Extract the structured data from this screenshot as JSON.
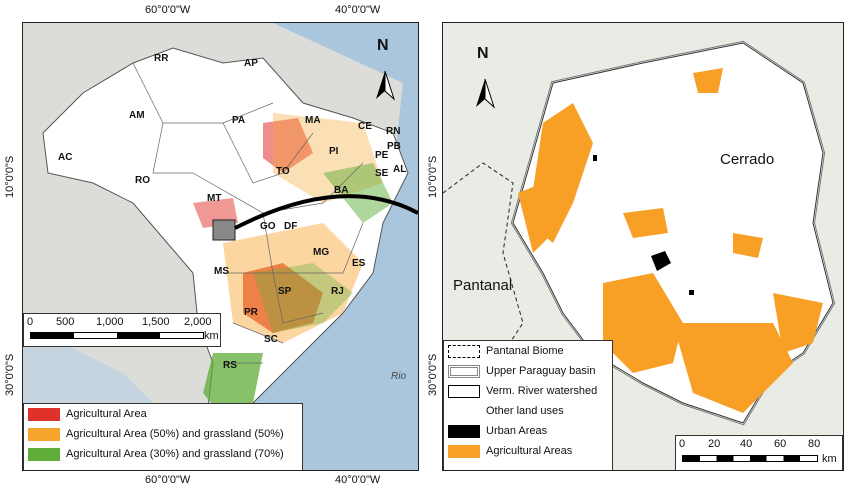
{
  "coords": {
    "top_left": "60°0'0\"W",
    "top_right": "40°0'0\"W",
    "bottom_left": "60°0'0\"W",
    "bottom_right": "40°0'0\"W",
    "left_upper": "10°0'0\"S",
    "left_lower": "30°0'0\"S",
    "right_upper": "10°0'0\"S",
    "right_lower": "30°0'0\"S"
  },
  "left_map": {
    "north": "N",
    "states": [
      "RR",
      "AP",
      "AM",
      "PA",
      "MA",
      "CE",
      "RN",
      "PB",
      "PE",
      "AL",
      "SE",
      "PI",
      "AC",
      "RO",
      "TO",
      "MT",
      "BA",
      "GO",
      "DF",
      "MG",
      "ES",
      "MS",
      "SP",
      "RJ",
      "PR",
      "SC",
      "RS"
    ],
    "scale": {
      "ticks": [
        "0",
        "500",
        "1,000",
        "1,500",
        "2,000"
      ],
      "unit": "km"
    },
    "legend": [
      {
        "label": "Agricultural Area",
        "color": "#e0322a"
      },
      {
        "label": "Agricultural Area (50%) and grassland (50%)",
        "color": "#f6a52c"
      },
      {
        "label": "Agricultural Area (30%) and grassland (70%)",
        "color": "#5fae3a"
      }
    ],
    "ocean_text": "Rio"
  },
  "right_map": {
    "north": "N",
    "region_labels": {
      "cerrado": "Cerrado",
      "pantanal": "Pantanal"
    },
    "legend": [
      {
        "label": "Pantanal Biome",
        "style": "dashed"
      },
      {
        "label": "Upper Paraguay basin",
        "style": "double"
      },
      {
        "label": "Verm. River watershed",
        "style": "outline"
      },
      {
        "label": "Other land uses",
        "style": "none"
      },
      {
        "label": "Urban Areas",
        "style": "black"
      },
      {
        "label": "Agricultural Areas",
        "style": "orange"
      }
    ],
    "scale": {
      "ticks": [
        "0",
        "20",
        "40",
        "60",
        "80"
      ],
      "unit": "km"
    }
  }
}
